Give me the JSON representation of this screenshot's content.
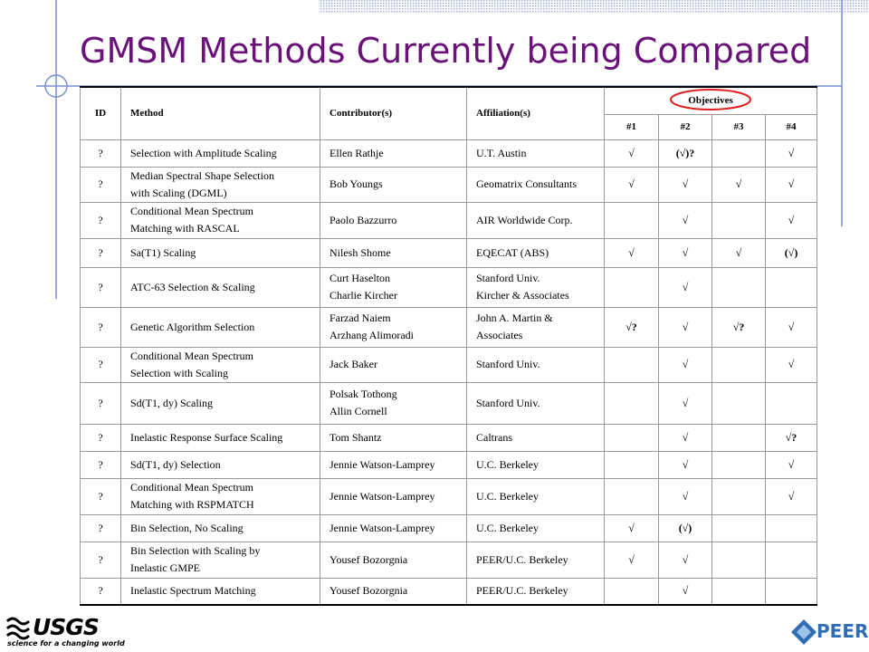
{
  "title": "GMSM Methods Currently being Compared",
  "table": {
    "header": [
      "ID",
      "Method",
      "Contributor(s)",
      "Affiliation(s)"
    ],
    "objectives_header": "Objectives",
    "objective_cols": [
      "#1",
      "#2",
      "#3",
      "#4"
    ],
    "rows": [
      [
        "?",
        "Selection with Amplitude Scaling",
        "Ellen Rathje",
        "U.T. Austin",
        "√",
        "(√)?",
        null,
        "√"
      ],
      [
        "?",
        [
          "Median Spectral Shape Selection",
          "with Scaling (DGML)"
        ],
        "Bob Youngs",
        "Geomatrix Consultants",
        "√",
        "√",
        "√",
        "√"
      ],
      [
        "?",
        [
          "Conditional Mean Spectrum",
          "Matching with RASCAL"
        ],
        "Paolo Bazzurro",
        "AIR Worldwide Corp.",
        null,
        "√",
        null,
        "√"
      ],
      [
        "?",
        "Sa(T1) Scaling",
        "Nilesh Shome",
        "EQECAT (ABS)",
        "√",
        "√",
        "√",
        "(√)"
      ],
      [
        "?",
        "ATC-63 Selection & Scaling",
        [
          "Curt Haselton",
          "Charlie Kircher"
        ],
        [
          "Stanford Univ.",
          "Kircher & Associates"
        ],
        null,
        "√",
        null,
        null
      ],
      [
        "?",
        "Genetic Algorithm Selection",
        [
          "Farzad Naiem",
          "Arzhang Alimoradi"
        ],
        [
          "John A. Martin &",
          "Associates"
        ],
        "√?",
        "√",
        "√?",
        "√"
      ],
      [
        "?",
        [
          "Conditional Mean Spectrum",
          "Selection with Scaling"
        ],
        "Jack Baker",
        "Stanford Univ.",
        null,
        "√",
        null,
        "√"
      ],
      [
        "?",
        "Sd(T1, dy) Scaling",
        [
          "Polsak Tothong",
          "Allin Cornell"
        ],
        "Stanford Univ.",
        null,
        "√",
        null,
        null
      ],
      [
        "?",
        "Inelastic Response Surface Scaling",
        "Tom Shantz",
        "Caltrans",
        null,
        "√",
        null,
        "√?"
      ],
      [
        "?",
        "Sd(T1, dy) Selection",
        "Jennie Watson-Lamprey",
        "U.C. Berkeley",
        null,
        "√",
        null,
        "√"
      ],
      [
        "?",
        [
          "Conditional Mean Spectrum",
          "Matching with RSPMATCH"
        ],
        "Jennie Watson-Lamprey",
        "U.C. Berkeley",
        null,
        "√",
        null,
        "√"
      ],
      [
        "?",
        "Bin Selection, No Scaling",
        "Jennie Watson-Lamprey",
        "U.C. Berkeley",
        "√",
        "(√)",
        null,
        null
      ],
      [
        "?",
        [
          "Bin Selection with Scaling by",
          "Inelastic GMPE"
        ],
        "Yousef Bozorgnia",
        "PEER/U.C. Berkeley",
        "√",
        "√",
        null,
        null
      ],
      [
        "?",
        "Inelastic Spectrum Matching",
        "Yousef Bozorgnia",
        "PEER/U.C. Berkeley",
        null,
        "√",
        null,
        null
      ]
    ]
  },
  "logos": {
    "usgs": "USGS",
    "usgs_tagline": "science for a changing world",
    "peer": "PEER"
  }
}
